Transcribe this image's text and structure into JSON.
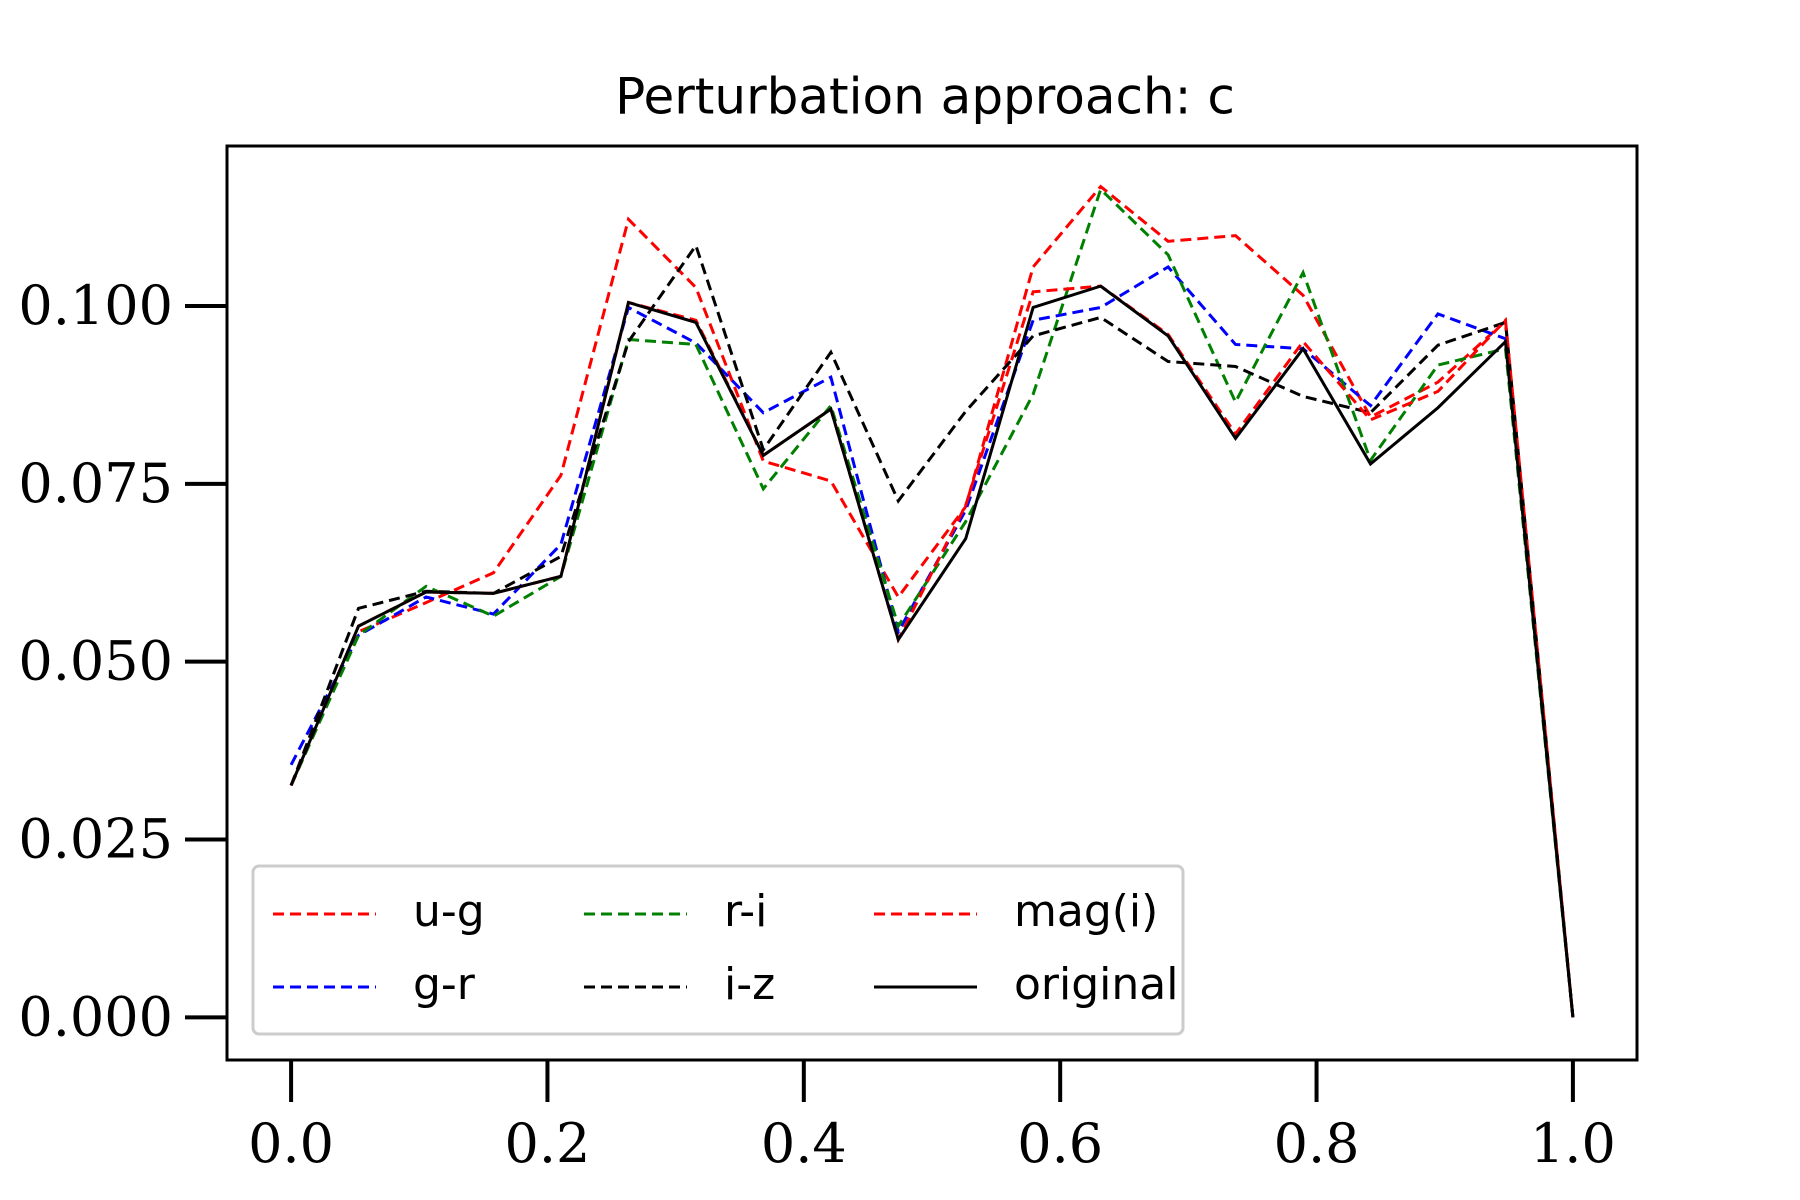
{
  "chart_data": {
    "type": "line",
    "title": "Perturbation approach: c",
    "x": [
      0,
      0.0526,
      0.1053,
      0.1579,
      0.2105,
      0.2632,
      0.3158,
      0.3684,
      0.4211,
      0.4737,
      0.5263,
      0.5789,
      0.6316,
      0.6842,
      0.7368,
      0.7895,
      0.8421,
      0.8947,
      0.9474,
      1
    ],
    "series": [
      {
        "name": "u-g",
        "color": "#ff0000",
        "linestyle": "dashed",
        "values": [
          0.0326,
          0.0542,
          0.0583,
          0.0625,
          0.0762,
          0.1122,
          0.1026,
          0.0782,
          0.0754,
          0.0591,
          0.0718,
          0.1055,
          0.1168,
          0.1091,
          0.1099,
          0.1015,
          0.0844,
          0.0893,
          0.0979,
          0
        ]
      },
      {
        "name": "g-r",
        "color": "#0000ff",
        "linestyle": "dashed",
        "values": [
          0.0355,
          0.0537,
          0.0591,
          0.0567,
          0.0665,
          0.0998,
          0.0948,
          0.085,
          0.09,
          0.0542,
          0.0713,
          0.098,
          0.0998,
          0.1055,
          0.0946,
          0.094,
          0.086,
          0.0989,
          0.0954,
          0
        ]
      },
      {
        "name": "r-i",
        "color": "#008000",
        "linestyle": "dashed",
        "values": [
          0.0326,
          0.0537,
          0.0606,
          0.0564,
          0.062,
          0.0953,
          0.0946,
          0.0743,
          0.086,
          0.055,
          0.0697,
          0.0876,
          0.1164,
          0.1072,
          0.0865,
          0.1047,
          0.0783,
          0.0917,
          0.094,
          0
        ]
      },
      {
        "name": "i-z",
        "color": "#000000",
        "linestyle": "dashed",
        "values": [
          0.0326,
          0.0575,
          0.0599,
          0.0596,
          0.0648,
          0.095,
          0.1085,
          0.0798,
          0.0935,
          0.0726,
          0.0852,
          0.0958,
          0.0984,
          0.0922,
          0.0915,
          0.0873,
          0.085,
          0.0945,
          0.0977,
          0
        ]
      },
      {
        "name": "mag(i)",
        "color": "#ff0000",
        "linestyle": "dashed",
        "values": [
          0.0326,
          0.055,
          0.0598,
          0.0596,
          0.062,
          0.1005,
          0.098,
          0.079,
          0.0855,
          0.0531,
          0.072,
          0.102,
          0.1028,
          0.096,
          0.082,
          0.095,
          0.084,
          0.088,
          0.098,
          0
        ]
      },
      {
        "name": "original",
        "color": "#000000",
        "linestyle": "solid",
        "values": [
          0.0326,
          0.055,
          0.0598,
          0.0596,
          0.062,
          0.1005,
          0.0977,
          0.079,
          0.0855,
          0.0531,
          0.0673,
          0.0998,
          0.1028,
          0.0958,
          0.0814,
          0.094,
          0.0778,
          0.0857,
          0.095,
          0
        ]
      }
    ],
    "xlim": [
      -0.05,
      1.05
    ],
    "ylim": [
      -0.006,
      0.1225
    ],
    "xticks": [
      {
        "value": 0,
        "label": "0.0"
      },
      0.2,
      0.4,
      0.6,
      0.8,
      {
        "value": 1,
        "label": "1.0"
      }
    ],
    "yticks": [
      {
        "value": 0,
        "label": "0.000"
      },
      0.025,
      {
        "value": 0.05,
        "label": "0.050"
      },
      0.075,
      {
        "value": 0.1,
        "label": "0.100"
      }
    ],
    "legend": "lower left",
    "legend_columns": 3,
    "grid": false
  }
}
